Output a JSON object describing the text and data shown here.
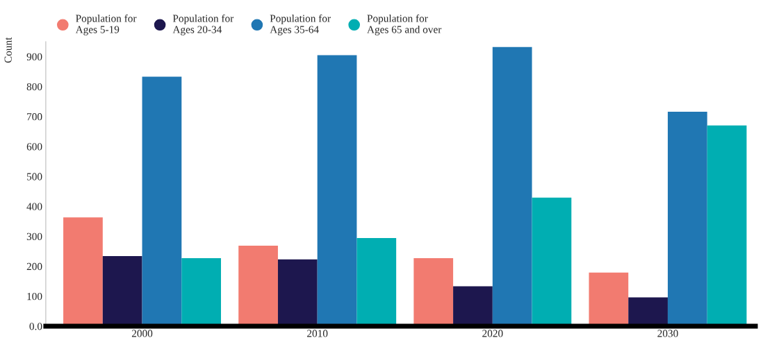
{
  "chart_data": {
    "type": "bar",
    "ylabel": "Count",
    "categories": [
      "2000",
      "2010",
      "2020",
      "2030"
    ],
    "series": [
      {
        "name": "Population for\nAges 5-19",
        "color": "#f27b70",
        "values": [
          363,
          269,
          227,
          179
        ]
      },
      {
        "name": "Population for\nAges 20-34",
        "color": "#1d174e",
        "values": [
          234,
          223,
          133,
          96
        ]
      },
      {
        "name": "Population for\nAges 35-64",
        "color": "#2077b3",
        "values": [
          833,
          905,
          932,
          716
        ]
      },
      {
        "name": "Population for\nAges 65 and over",
        "color": "#00aeb2",
        "values": [
          227,
          294,
          429,
          670
        ]
      }
    ],
    "ylim": [
      0,
      950
    ],
    "yticks": [
      {
        "value": 0,
        "label": "0.0"
      },
      100,
      200,
      300,
      400,
      500,
      600,
      700,
      800,
      900
    ],
    "grid": false,
    "legend": "top left"
  }
}
